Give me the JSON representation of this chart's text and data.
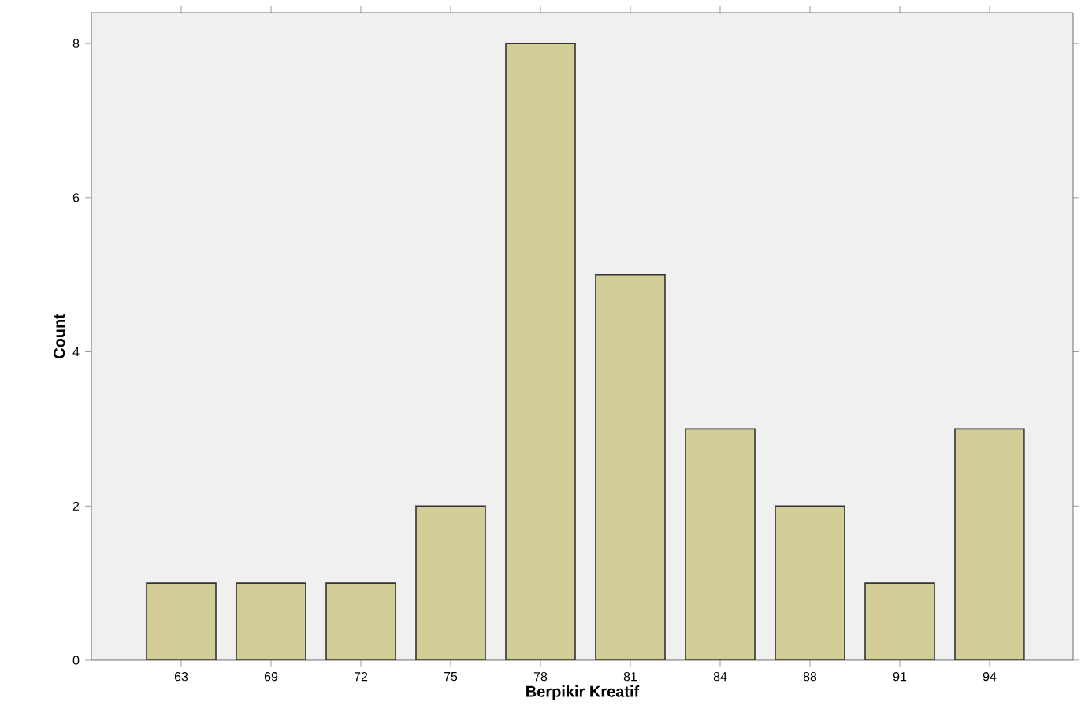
{
  "chart_data": {
    "type": "bar",
    "xlabel": "Berpikir Kreatif",
    "ylabel": "Count",
    "categories": [
      "63",
      "69",
      "72",
      "75",
      "78",
      "81",
      "84",
      "88",
      "91",
      "94"
    ],
    "values": [
      1,
      1,
      1,
      2,
      8,
      5,
      3,
      2,
      1,
      3
    ],
    "color": "#d3ce97",
    "ylim": [
      0,
      8.4
    ],
    "yticks": [
      0,
      2,
      4,
      6,
      8
    ]
  }
}
